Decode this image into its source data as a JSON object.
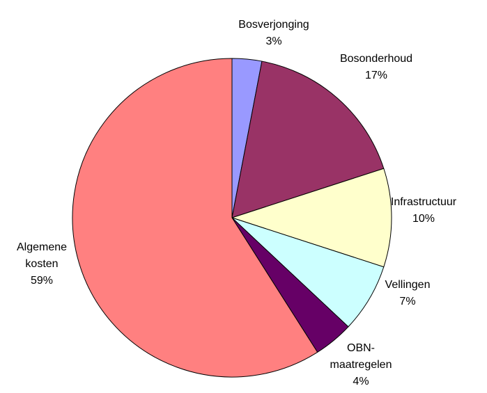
{
  "chart_data": {
    "type": "pie",
    "categories": [
      "Bosverjonging",
      "Bosonderhoud",
      "Infrastructuur",
      "Vellingen",
      "OBN-\nmaatregelen",
      "Algemene\nkosten"
    ],
    "values": [
      3,
      17,
      10,
      7,
      4,
      59
    ],
    "value_labels": [
      "3%",
      "17%",
      "10%",
      "7%",
      "4%",
      "59%"
    ],
    "colors": [
      "#9999ff",
      "#993366",
      "#ffffcc",
      "#ccffff",
      "#660066",
      "#ff8080"
    ]
  }
}
